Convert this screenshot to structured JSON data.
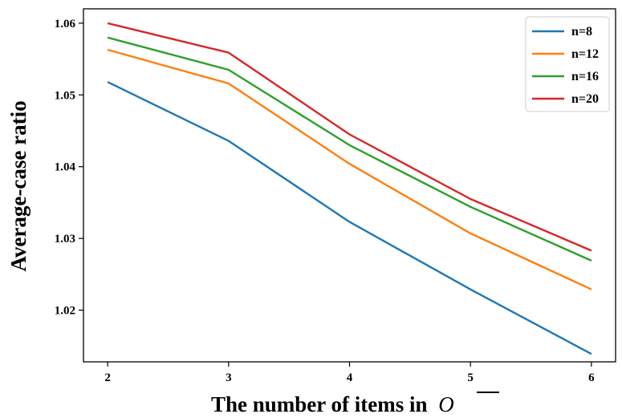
{
  "chart_data": {
    "type": "line",
    "xlabel": "The number of items in",
    "xlabel_symbol": "O",
    "ylabel": "Average-case ratio",
    "x": [
      2,
      3,
      4,
      5,
      6
    ],
    "x_ticks": [
      "2",
      "3",
      "4",
      "5",
      "6"
    ],
    "y_ticks": [
      "1.02",
      "1.03",
      "1.04",
      "1.05",
      "1.06"
    ],
    "y_tick_values": [
      1.02,
      1.03,
      1.04,
      1.05,
      1.06
    ],
    "xlim": [
      1.8,
      6.2
    ],
    "ylim": [
      1.0128,
      1.062
    ],
    "grid": false,
    "legend_position": "top-right",
    "series": [
      {
        "name": "n=8",
        "color": "#1f77b4",
        "values": [
          1.0518,
          1.0436,
          1.0323,
          1.0229,
          1.0139
        ]
      },
      {
        "name": "n=12",
        "color": "#ff7f0e",
        "values": [
          1.0563,
          1.0516,
          1.0404,
          1.0307,
          1.0229
        ]
      },
      {
        "name": "n=16",
        "color": "#2ca02c",
        "values": [
          1.058,
          1.0535,
          1.043,
          1.0344,
          1.0269
        ]
      },
      {
        "name": "n=20",
        "color": "#d62728",
        "values": [
          1.06,
          1.0559,
          1.0445,
          1.0355,
          1.0283
        ]
      }
    ]
  }
}
